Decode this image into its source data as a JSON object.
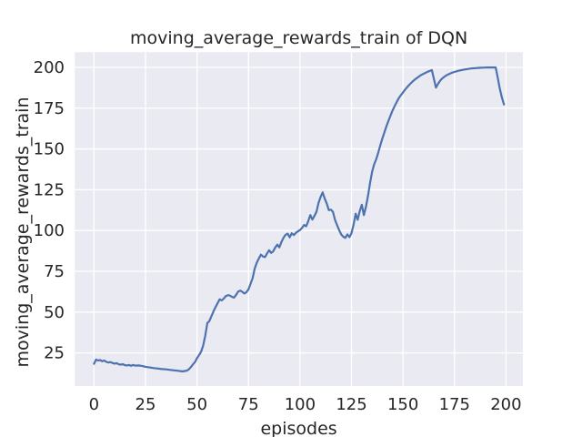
{
  "figure": {
    "background": "#ffffff"
  },
  "chart_data": {
    "type": "line",
    "title": "moving_average_rewards_train of DQN",
    "xlabel": "episodes",
    "ylabel": "moving_average_rewards_train",
    "x_ticks": [
      0,
      25,
      50,
      75,
      100,
      125,
      150,
      175,
      200
    ],
    "y_ticks": [
      25,
      50,
      75,
      100,
      125,
      150,
      175,
      200
    ],
    "xlim": [
      -9.3,
      208.2
    ],
    "ylim": [
      4.7,
      209.3
    ],
    "grid": true,
    "legend": "none",
    "style": {
      "plot_background": "#eaeaf2",
      "grid_color": "#ffffff",
      "line_color": "#4c72b0",
      "text_color": "#262626",
      "line_width": 2.2,
      "grid_width": 1.3
    },
    "series": [
      {
        "name": "moving_average_rewards_train",
        "points": [
          [
            0,
            18.3
          ],
          [
            1,
            20.9
          ],
          [
            2,
            20.3
          ],
          [
            3,
            20.6
          ],
          [
            4,
            19.9
          ],
          [
            5,
            20.3
          ],
          [
            6,
            19.5
          ],
          [
            7,
            19.1
          ],
          [
            8,
            19.4
          ],
          [
            9,
            18.8
          ],
          [
            10,
            18.4
          ],
          [
            11,
            18.7
          ],
          [
            12,
            18.0
          ],
          [
            13,
            17.8
          ],
          [
            14,
            18.1
          ],
          [
            15,
            17.5
          ],
          [
            16,
            17.3
          ],
          [
            17,
            17.6
          ],
          [
            18,
            17.1
          ],
          [
            19,
            17.6
          ],
          [
            20,
            17.2
          ],
          [
            22,
            17.3
          ],
          [
            24,
            16.8
          ],
          [
            25,
            16.5
          ],
          [
            27,
            16.1
          ],
          [
            29,
            15.7
          ],
          [
            31,
            15.4
          ],
          [
            33,
            15.1
          ],
          [
            35,
            14.9
          ],
          [
            37,
            14.6
          ],
          [
            39,
            14.3
          ],
          [
            41,
            14.0
          ],
          [
            43,
            13.6
          ],
          [
            44,
            13.9
          ],
          [
            45,
            14.1
          ],
          [
            46,
            14.9
          ],
          [
            47,
            16.2
          ],
          [
            48,
            17.9
          ],
          [
            49,
            19.4
          ],
          [
            50,
            21.7
          ],
          [
            51,
            23.6
          ],
          [
            52,
            25.8
          ],
          [
            53,
            29.5
          ],
          [
            54,
            35.5
          ],
          [
            55,
            43.3
          ],
          [
            56,
            44.5
          ],
          [
            57,
            47.5
          ],
          [
            58,
            50.5
          ],
          [
            59,
            53.0
          ],
          [
            60,
            55.5
          ],
          [
            61,
            57.8
          ],
          [
            62,
            57.2
          ],
          [
            63,
            58.3
          ],
          [
            64,
            59.8
          ],
          [
            65,
            60.4
          ],
          [
            66,
            60.1
          ],
          [
            67,
            59.3
          ],
          [
            68,
            58.9
          ],
          [
            69,
            60.6
          ],
          [
            70,
            62.6
          ],
          [
            71,
            63.2
          ],
          [
            72,
            62.4
          ],
          [
            73,
            61.4
          ],
          [
            74,
            62.2
          ],
          [
            75,
            64.0
          ],
          [
            76,
            67.3
          ],
          [
            77,
            70.8
          ],
          [
            78,
            76.7
          ],
          [
            79,
            80.2
          ],
          [
            80,
            82.8
          ],
          [
            81,
            85.2
          ],
          [
            82,
            84.1
          ],
          [
            83,
            83.7
          ],
          [
            84,
            86.0
          ],
          [
            85,
            87.9
          ],
          [
            86,
            86.3
          ],
          [
            87,
            87.2
          ],
          [
            88,
            89.6
          ],
          [
            89,
            91.4
          ],
          [
            90,
            89.7
          ],
          [
            91,
            93.0
          ],
          [
            92,
            95.6
          ],
          [
            93,
            97.4
          ],
          [
            94,
            98.1
          ],
          [
            95,
            95.8
          ],
          [
            96,
            98.3
          ],
          [
            97,
            97.2
          ],
          [
            98,
            98.6
          ],
          [
            99,
            99.5
          ],
          [
            100,
            100.3
          ],
          [
            101,
            101.6
          ],
          [
            102,
            103.4
          ],
          [
            103,
            102.6
          ],
          [
            104,
            105.8
          ],
          [
            105,
            109.5
          ],
          [
            106,
            106.7
          ],
          [
            107,
            109.0
          ],
          [
            108,
            111.5
          ],
          [
            109,
            117.0
          ],
          [
            110,
            120.5
          ],
          [
            111,
            123.4
          ],
          [
            112,
            119.5
          ],
          [
            113,
            116.5
          ],
          [
            114,
            112.5
          ],
          [
            115,
            112.8
          ],
          [
            116,
            111.5
          ],
          [
            117,
            106.5
          ],
          [
            118,
            103.3
          ],
          [
            119,
            100.3
          ],
          [
            120,
            97.6
          ],
          [
            121,
            96.2
          ],
          [
            122,
            95.5
          ],
          [
            123,
            97.6
          ],
          [
            124,
            95.9
          ],
          [
            125,
            98.4
          ],
          [
            126,
            103.5
          ],
          [
            127,
            110.3
          ],
          [
            128,
            106.6
          ],
          [
            129,
            111.9
          ],
          [
            130,
            115.8
          ],
          [
            131,
            109.4
          ],
          [
            132,
            114.5
          ],
          [
            133,
            121.3
          ],
          [
            134,
            129.0
          ],
          [
            135,
            136.0
          ],
          [
            136,
            140.5
          ],
          [
            137,
            143.7
          ],
          [
            138,
            147.8
          ],
          [
            139,
            152.2
          ],
          [
            140,
            156.4
          ],
          [
            141,
            160.3
          ],
          [
            142,
            164.0
          ],
          [
            143,
            167.4
          ],
          [
            144,
            170.7
          ],
          [
            145,
            173.7
          ],
          [
            146,
            176.4
          ],
          [
            147,
            178.9
          ],
          [
            148,
            181.2
          ],
          [
            149,
            183.0
          ],
          [
            150,
            184.7
          ],
          [
            151,
            186.3
          ],
          [
            152,
            187.8
          ],
          [
            153,
            189.2
          ],
          [
            154,
            190.5
          ],
          [
            155,
            191.7
          ],
          [
            156,
            192.8
          ],
          [
            157,
            193.7
          ],
          [
            158,
            194.6
          ],
          [
            159,
            195.4
          ],
          [
            160,
            196.1
          ],
          [
            161,
            196.7
          ],
          [
            162,
            197.3
          ],
          [
            163,
            197.8
          ],
          [
            164,
            198.3
          ],
          [
            165,
            193.0
          ],
          [
            166,
            187.6
          ],
          [
            167,
            189.9
          ],
          [
            168,
            191.7
          ],
          [
            169,
            193.1
          ],
          [
            170,
            194.2
          ],
          [
            171,
            195.0
          ],
          [
            172,
            195.7
          ],
          [
            173,
            196.3
          ],
          [
            174,
            196.8
          ],
          [
            175,
            197.2
          ],
          [
            176,
            197.6
          ],
          [
            177,
            197.9
          ],
          [
            178,
            198.2
          ],
          [
            179,
            198.5
          ],
          [
            180,
            198.7
          ],
          [
            181,
            198.9
          ],
          [
            182,
            199.1
          ],
          [
            183,
            199.3
          ],
          [
            184,
            199.4
          ],
          [
            185,
            199.5
          ],
          [
            186,
            199.6
          ],
          [
            187,
            199.7
          ],
          [
            188,
            199.75
          ],
          [
            189,
            199.8
          ],
          [
            190,
            199.85
          ],
          [
            191,
            199.9
          ],
          [
            192,
            199.9
          ],
          [
            193,
            199.95
          ],
          [
            194,
            199.95
          ],
          [
            195,
            199.9
          ],
          [
            196,
            193.5
          ],
          [
            197,
            187.0
          ],
          [
            198,
            181.5
          ],
          [
            199,
            177.2
          ]
        ]
      }
    ]
  }
}
